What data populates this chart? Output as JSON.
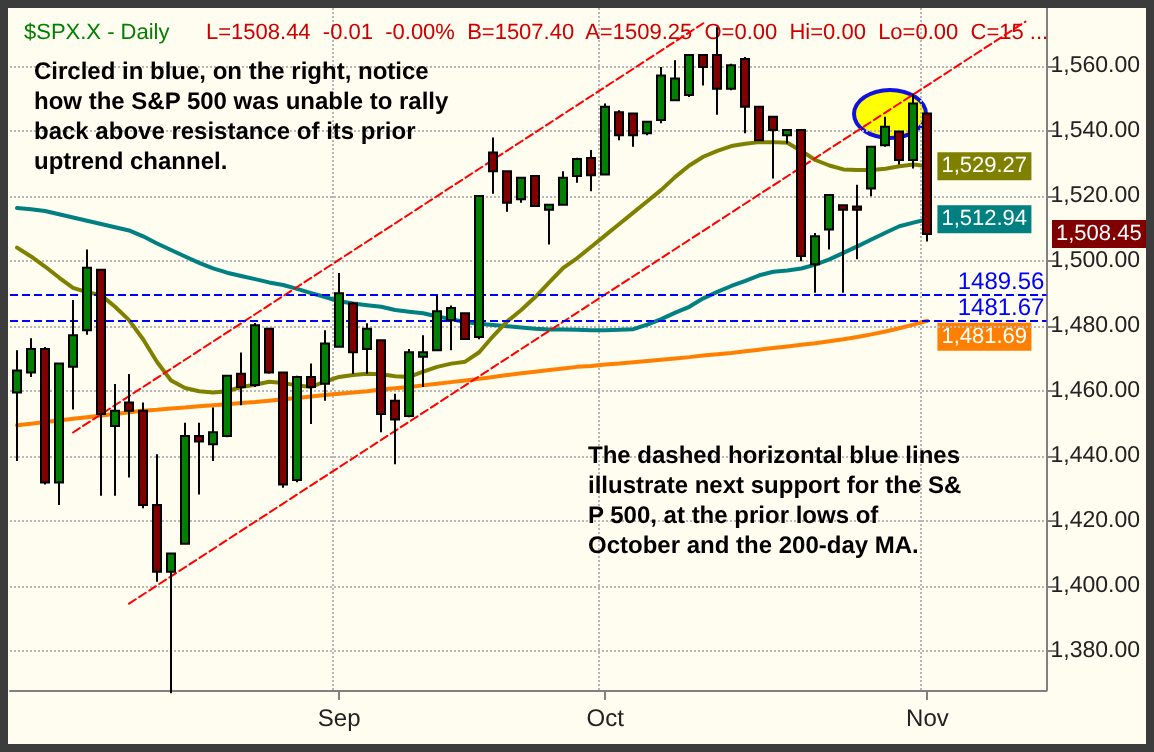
{
  "chart_data": {
    "type": "candlestick",
    "title": "$SPX.X - Daily",
    "subtitle": "L=1508.44  -0.01  -0.00%  B=1507.40  A=1509.25  O=0.00  Hi=0.00  Lo=0.00  C=15 ...",
    "categories": [
      null,
      null,
      null,
      null,
      null,
      null,
      null,
      null,
      null,
      null,
      null,
      null,
      null,
      null,
      null,
      null,
      null,
      null,
      null,
      null,
      null,
      null,
      null,
      "Sep",
      null,
      null,
      null,
      null,
      null,
      null,
      null,
      null,
      null,
      null,
      null,
      null,
      null,
      null,
      null,
      null,
      null,
      null,
      "Oct",
      null,
      null,
      null,
      null,
      null,
      null,
      null,
      null,
      null,
      null,
      null,
      null,
      null,
      null,
      null,
      null,
      null,
      null,
      null,
      null,
      null,
      null,
      "Nov",
      null,
      null,
      null,
      null,
      null,
      null,
      null,
      null
    ],
    "ohlc": [
      [
        1459.6,
        1472.6,
        1438.5,
        1466.4
      ],
      [
        1465.8,
        1476.3,
        1464.4,
        1473.0
      ],
      [
        1473.0,
        1473.6,
        1431.3,
        1431.9
      ],
      [
        1431.9,
        1468.5,
        1425.0,
        1468.5
      ],
      [
        1467.5,
        1488.1,
        1454.4,
        1477.2
      ],
      [
        1478.8,
        1503.6,
        1477.4,
        1498.0
      ],
      [
        1497.4,
        1497.4,
        1427.8,
        1453.0
      ],
      [
        1449.3,
        1462.2,
        1427.8,
        1454.0
      ],
      [
        1456.5,
        1465.3,
        1433.4,
        1454.0
      ],
      [
        1454.0,
        1456.5,
        1424.0,
        1425.0
      ],
      [
        1425.0,
        1440.6,
        1401.3,
        1404.4
      ],
      [
        1404.4,
        1410.0,
        1367.0,
        1410.0
      ],
      [
        1413.0,
        1450.3,
        1413.0,
        1446.2
      ],
      [
        1446.2,
        1450.3,
        1428.2,
        1444.5
      ],
      [
        1443.7,
        1455.0,
        1438.5,
        1447.4
      ],
      [
        1446.2,
        1465.0,
        1445.8,
        1464.8
      ],
      [
        1465.4,
        1471.9,
        1455.7,
        1461.3
      ],
      [
        1461.9,
        1481.0,
        1461.3,
        1480.3
      ],
      [
        1479.2,
        1479.5,
        1465.4,
        1465.8
      ],
      [
        1465.8,
        1465.8,
        1430.3,
        1431.3
      ],
      [
        1432.7,
        1464.8,
        1432.0,
        1464.4
      ],
      [
        1464.4,
        1468.5,
        1449.9,
        1461.3
      ],
      [
        1462.3,
        1478.8,
        1457.1,
        1474.7
      ],
      [
        1473.7,
        1496.4,
        1473.5,
        1490.2
      ],
      [
        1487.0,
        1487.5,
        1465.4,
        1472.0
      ],
      [
        1473.0,
        1480.9,
        1465.4,
        1479.2
      ],
      [
        1475.7,
        1475.7,
        1447.4,
        1453.0
      ],
      [
        1457.1,
        1459.2,
        1437.5,
        1451.3
      ],
      [
        1452.4,
        1473.0,
        1452.0,
        1472.0
      ],
      [
        1470.6,
        1477.2,
        1461.3,
        1472.0
      ],
      [
        1472.6,
        1489.6,
        1472.4,
        1484.6
      ],
      [
        1481.9,
        1486.4,
        1472.6,
        1485.6
      ],
      [
        1484.0,
        1484.0,
        1476.0,
        1476.1
      ],
      [
        1476.7,
        1520.1,
        1476.0,
        1520.1
      ],
      [
        1533.5,
        1538.1,
        1520.8,
        1527.7
      ],
      [
        1527.7,
        1527.7,
        1515.3,
        1518.0
      ],
      [
        1519.1,
        1525.9,
        1518.0,
        1525.7
      ],
      [
        1526.3,
        1526.5,
        1517.0,
        1517.0
      ],
      [
        1515.9,
        1517.5,
        1505.2,
        1517.4
      ],
      [
        1517.4,
        1527.7,
        1517.3,
        1525.7
      ],
      [
        1526.3,
        1531.9,
        1524.2,
        1531.5
      ],
      [
        1531.8,
        1534.3,
        1521.6,
        1526.5
      ],
      [
        1526.7,
        1548.6,
        1526.5,
        1547.6
      ],
      [
        1545.9,
        1546.5,
        1537.3,
        1538.8
      ],
      [
        1545.5,
        1545.5,
        1535.3,
        1538.8
      ],
      [
        1539.4,
        1543.0,
        1538.8,
        1543.0
      ],
      [
        1543.5,
        1559.8,
        1542.5,
        1557.2
      ],
      [
        1549.6,
        1561.9,
        1549.6,
        1556.3
      ],
      [
        1551.2,
        1563.5,
        1550.6,
        1563.5
      ],
      [
        1563.5,
        1563.5,
        1554.1,
        1559.8
      ],
      [
        1563.5,
        1572.1,
        1545.1,
        1553.1
      ],
      [
        1553.1,
        1560.8,
        1552.7,
        1560.4
      ],
      [
        1562.3,
        1562.9,
        1539.4,
        1547.6
      ],
      [
        1547.6,
        1547.6,
        1537.3,
        1537.3
      ],
      [
        1544.5,
        1544.5,
        1525.5,
        1540.4
      ],
      [
        1538.8,
        1540.4,
        1536.3,
        1540.4
      ],
      [
        1540.4,
        1540.4,
        1500.0,
        1501.6
      ],
      [
        1499.1,
        1508.7,
        1490.3,
        1507.7
      ],
      [
        1509.8,
        1520.4,
        1503.6,
        1520.4
      ],
      [
        1517.3,
        1517.3,
        1490.3,
        1515.9
      ],
      [
        1516.9,
        1523.6,
        1500.6,
        1515.9
      ],
      [
        1522.4,
        1535.3,
        1520.0,
        1535.3
      ],
      [
        1535.7,
        1544.5,
        1535.3,
        1541.4
      ],
      [
        1540.0,
        1540.0,
        1529.8,
        1531.2
      ],
      [
        1531.2,
        1551.6,
        1528.6,
        1548.6
      ],
      [
        1545.5,
        1545.5,
        1506.1,
        1508.4
      ],
      null,
      null,
      null,
      null,
      null,
      null,
      null,
      null
    ],
    "colors": [
      "#008000",
      "#008000",
      "#800000",
      "#008000",
      "#008000",
      "#008000",
      "#800000",
      "#008000",
      "#800000",
      "#800000",
      "#800000",
      "#008000",
      "#008000",
      "#800000",
      "#008000",
      "#008000",
      "#800000",
      "#008000",
      "#800000",
      "#800000",
      "#008000",
      "#800000",
      "#008000",
      "#008000",
      "#800000",
      "#008000",
      "#800000",
      "#800000",
      "#008000",
      "#008000",
      "#008000",
      "#008000",
      "#800000",
      "#008000",
      "#800000",
      "#800000",
      "#008000",
      "#800000",
      "#008000",
      "#008000",
      "#008000",
      "#800000",
      "#008000",
      "#800000",
      "#800000",
      "#008000",
      "#008000",
      "#008000",
      "#008000",
      "#800000",
      "#800000",
      "#008000",
      "#800000",
      "#800000",
      "#800000",
      "#008000",
      "#800000",
      "#008000",
      "#008000",
      "#800000",
      "#800000",
      "#008000",
      "#008000",
      "#800000",
      "#008000",
      "#800000",
      null,
      null,
      null,
      null,
      null,
      null,
      null,
      null
    ],
    "series": [
      {
        "type": "line",
        "color": "#008080",
        "values": [
          1516.4,
          1516,
          1515.5,
          1514.5,
          1513.5,
          1512.5,
          1511.5,
          1510.5,
          1509.5,
          1507.7,
          1505.5,
          1503.5,
          1501.5,
          1499.5,
          1497.8,
          1496.5,
          1495.5,
          1494.5,
          1493.5,
          1492.7,
          1491.5,
          1490.2,
          1489,
          1487.7,
          1487,
          1486.5,
          1486,
          1485,
          1484.5,
          1484,
          1483,
          1482.2,
          1481.3,
          1480.8,
          1480.4,
          1480,
          1479.6,
          1479.2,
          1479,
          1479,
          1478.9,
          1478.8,
          1478.8,
          1478.9,
          1479.1,
          1480.5,
          1482.2,
          1484.2,
          1486,
          1488.6,
          1490.6,
          1492.4,
          1494,
          1495.7,
          1496.8,
          1497.2,
          1497.8,
          1499,
          1500.6,
          1502.6,
          1504.6,
          1506.7,
          1508.8,
          1510.8,
          1511.9,
          1512.94,
          null,
          null,
          null,
          null,
          null,
          null,
          null,
          null
        ],
        "value_labels": [
          null,
          null,
          null,
          null,
          null,
          null,
          null,
          null,
          null,
          null,
          null,
          null,
          null,
          null,
          null,
          null,
          null,
          null,
          null,
          null,
          null,
          null,
          null,
          null,
          null,
          null,
          null,
          null,
          null,
          null,
          null,
          null,
          null,
          null,
          null,
          null,
          null,
          null,
          null,
          null,
          null,
          null,
          null,
          null,
          null,
          null,
          null,
          null,
          null,
          null,
          null,
          null,
          null,
          null,
          null,
          null,
          null,
          null,
          null,
          null,
          null,
          null,
          null,
          null,
          null,
          "1,512.94",
          null,
          null,
          null,
          null,
          null,
          null,
          null,
          null
        ]
      },
      {
        "type": "line",
        "color": "#808000",
        "values": [
          1504.2,
          1501.5,
          1498.4,
          1495,
          1491.8,
          1490.5,
          1489.6,
          1486,
          1481.9,
          1476,
          1469,
          1463.3,
          1461,
          1460,
          1459.6,
          1460,
          1461.3,
          1462,
          1462.9,
          1462.5,
          1461.8,
          1461.3,
          1463,
          1464.4,
          1465,
          1465.4,
          1465.2,
          1464.6,
          1464.4,
          1466,
          1467.5,
          1468.5,
          1469.1,
          1472,
          1477,
          1481.5,
          1485,
          1489,
          1493.5,
          1498,
          1501,
          1504.5,
          1508,
          1511.5,
          1515,
          1518.5,
          1522,
          1526,
          1529.5,
          1532.2,
          1534,
          1535.5,
          1536.2,
          1536.7,
          1536.7,
          1536.5,
          1534,
          1531.2,
          1529.5,
          1528.3,
          1528.1,
          1528.1,
          1528.5,
          1529.3,
          1529.8,
          1529.27,
          null,
          null,
          null,
          null,
          null,
          null,
          null,
          null
        ],
        "value_labels": [
          null,
          null,
          null,
          null,
          null,
          null,
          null,
          null,
          null,
          null,
          null,
          null,
          null,
          null,
          null,
          null,
          null,
          null,
          null,
          null,
          null,
          null,
          null,
          null,
          null,
          null,
          null,
          null,
          null,
          null,
          null,
          null,
          null,
          null,
          null,
          null,
          null,
          null,
          null,
          null,
          null,
          null,
          null,
          null,
          null,
          null,
          null,
          null,
          null,
          null,
          null,
          null,
          null,
          null,
          null,
          null,
          null,
          null,
          null,
          null,
          null,
          null,
          null,
          null,
          null,
          "1,529.27",
          null,
          null,
          null,
          null,
          null,
          null,
          null,
          null
        ]
      },
      {
        "type": "line",
        "color": "#ff8000",
        "values": [
          1449.5,
          1450,
          1450.5,
          1451,
          1451.5,
          1452,
          1452.5,
          1453,
          1453.5,
          1454,
          1454.3,
          1454.7,
          1455,
          1455.4,
          1455.7,
          1456,
          1456.4,
          1456.7,
          1457.1,
          1457.5,
          1457.9,
          1458.4,
          1458.8,
          1459.2,
          1459.6,
          1460,
          1460.5,
          1460.9,
          1461.3,
          1461.8,
          1462.3,
          1462.8,
          1463.3,
          1463.8,
          1464.4,
          1465,
          1465.5,
          1466,
          1466.5,
          1467,
          1467.5,
          1467.8,
          1468.2,
          1468.5,
          1468.9,
          1469.3,
          1469.7,
          1470.1,
          1470.5,
          1471,
          1471.4,
          1471.8,
          1472.3,
          1472.8,
          1473.3,
          1473.8,
          1474.3,
          1474.8,
          1475.4,
          1476,
          1476.7,
          1477.5,
          1478.4,
          1479.4,
          1480.5,
          1481.69,
          null,
          null,
          null,
          null,
          null,
          null,
          null,
          null
        ],
        "value_labels": [
          null,
          null,
          null,
          null,
          null,
          null,
          null,
          null,
          null,
          null,
          null,
          null,
          null,
          null,
          null,
          null,
          null,
          null,
          null,
          null,
          null,
          null,
          null,
          null,
          null,
          null,
          null,
          null,
          null,
          null,
          null,
          null,
          null,
          null,
          null,
          null,
          null,
          null,
          null,
          null,
          null,
          null,
          null,
          null,
          null,
          null,
          null,
          null,
          null,
          null,
          null,
          null,
          null,
          null,
          null,
          null,
          null,
          null,
          null,
          null,
          null,
          null,
          null,
          null,
          null,
          "1,481.69",
          null,
          null,
          null,
          null,
          null,
          null,
          null,
          null
        ]
      },
      {
        "type": "line",
        "color": "#ff0000",
        "line_style": "dashed",
        "values": [
          null,
          null,
          null,
          null,
          null,
          null,
          null,
          null,
          1394.6,
          1397.4,
          1400.2,
          1403.0,
          1405.8,
          1408.6,
          1411.4,
          1414.2,
          1417.0,
          1419.8,
          1422.6,
          1425.4,
          1428.2,
          1431.0,
          1433.8,
          1436.6,
          1439.4,
          1442.2,
          1445.0,
          1447.8,
          1450.6,
          1453.4,
          1456.2,
          1459.0,
          1461.8,
          1464.6,
          1467.4,
          1470.2,
          1473.0,
          1475.8,
          1478.6,
          1481.4,
          1484.2,
          1487.0,
          1489.8,
          1492.6,
          1495.4,
          1498.2,
          1501.0,
          1503.8,
          1506.6,
          1509.4,
          1512.2,
          1515.0,
          1517.8,
          1520.6,
          1523.4,
          1526.2,
          1529.0,
          1531.8,
          1534.6,
          1537.4,
          1540.2,
          1543.0,
          1545.8,
          1548.6,
          1551.4,
          1554.2,
          1557.0,
          1559.8,
          1562.6,
          1565.4,
          1568.2,
          1571.0,
          1573.8,
          null
        ]
      },
      {
        "type": "line",
        "color": "#ff0000",
        "line_style": "dashed",
        "values": [
          null,
          null,
          null,
          null,
          1447.3,
          1450.1,
          1452.9,
          1455.7,
          1458.5,
          1461.3,
          1464.1,
          1466.9,
          1469.7,
          1472.5,
          1475.3,
          1478.1,
          1480.9,
          1483.7,
          1486.5,
          1489.3,
          1492.1,
          1494.9,
          1497.7,
          1500.5,
          1503.3,
          1506.1,
          1508.9,
          1511.7,
          1514.5,
          1517.3,
          1520.1,
          1522.9,
          1525.7,
          1528.5,
          1531.3,
          1534.1,
          1536.9,
          1539.7,
          1542.5,
          1545.3,
          1548.1,
          1550.9,
          1553.7,
          1556.5,
          1559.3,
          1562.1,
          1564.9,
          1567.7,
          1570.5,
          1573.3,
          null,
          null,
          null,
          null,
          null,
          null,
          null,
          null,
          null,
          null,
          null,
          null,
          null,
          null,
          null,
          null,
          null,
          null,
          null,
          null,
          null,
          null,
          null,
          null
        ]
      }
    ],
    "ref_lines": [
      {
        "axis": "y",
        "value": 1489.56,
        "label": "1489.56",
        "color": "#0000ff",
        "line_style": "dashed"
      },
      {
        "axis": "y",
        "value": 1481.67,
        "label": "1481.67",
        "color": "#0000ff",
        "line_style": "dashed"
      }
    ],
    "annotations": [
      "Circled in blue, on the right, notice how the S&P 500 was unable to rally back above resistance of its prior uptrend channel.",
      "The dashed horizontal blue lines illustrate next support for the S&P 500, at the prior lows of October and the 200-day MA.",
      "1,508.45"
    ],
    "ylim": [
      1368,
      1578
    ],
    "yticks": [
      {
        "value": 1380,
        "label": "1,380.00"
      },
      {
        "value": 1400,
        "label": "1,400.00"
      },
      {
        "value": 1420,
        "label": "1,420.00"
      },
      {
        "value": 1440,
        "label": "1,440.00"
      },
      {
        "value": 1460,
        "label": "1,460.00"
      },
      {
        "value": 1480,
        "label": "1,480.00"
      },
      {
        "value": 1500,
        "label": "1,500.00"
      },
      {
        "value": 1520,
        "label": "1,520.00"
      },
      {
        "value": 1540,
        "label": "1,540.00"
      },
      {
        "value": 1560,
        "label": "1,560.00"
      }
    ],
    "grid": true
  }
}
